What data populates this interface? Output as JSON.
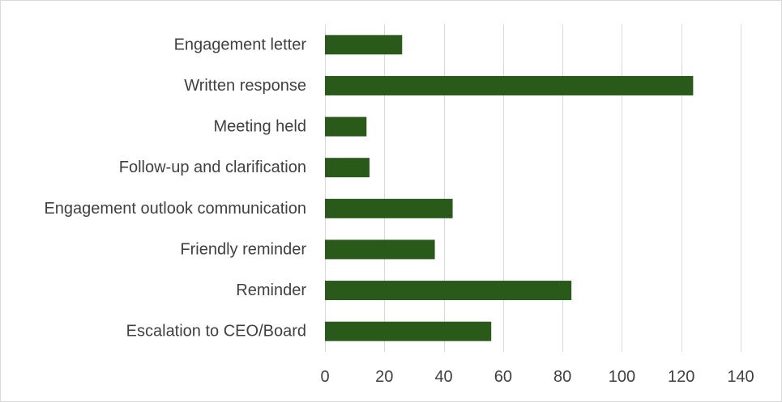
{
  "chart_data": {
    "type": "bar",
    "orientation": "horizontal",
    "title": "",
    "xlabel": "",
    "ylabel": "",
    "categories": [
      "Engagement letter",
      "Written response",
      "Meeting held",
      "Follow-up and clarification",
      "Engagement outlook communication",
      "Friendly reminder",
      "Reminder",
      "Escalation to CEO/Board"
    ],
    "values": [
      26,
      124,
      14,
      15,
      43,
      37,
      83,
      56
    ],
    "xlim": [
      0,
      140
    ],
    "xticks": [
      0,
      20,
      40,
      60,
      80,
      100,
      120,
      140
    ],
    "grid": "vertical",
    "legend": "none",
    "bar_color": "#2a5a1a",
    "grid_color": "#d9d9d9",
    "text_color": "#404040"
  }
}
